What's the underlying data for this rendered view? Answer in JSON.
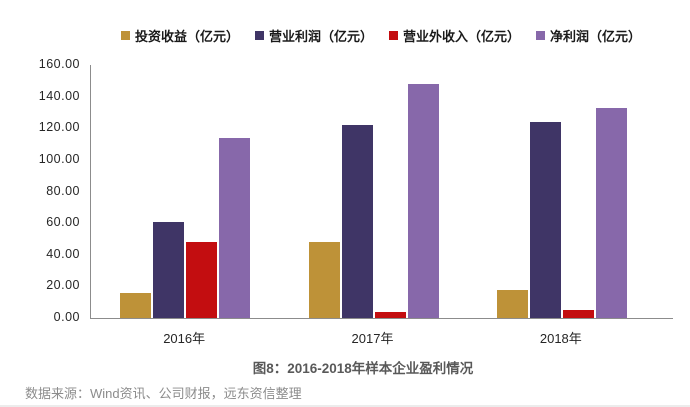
{
  "chart_data": {
    "type": "bar",
    "title": "图8：2016-2018年样本企业盈利情况",
    "categories": [
      "2016年",
      "2017年",
      "2018年"
    ],
    "series": [
      {
        "key": "investment-income",
        "name": "投资收益（亿元）",
        "color": "#BE9238",
        "values": [
          16,
          48,
          18
        ]
      },
      {
        "key": "operating-profit",
        "name": "营业利润（亿元）",
        "color": "#3F3566",
        "values": [
          61,
          122,
          124
        ]
      },
      {
        "key": "non-operating-income",
        "name": "营业外收入（亿元）",
        "color": "#C30D10",
        "values": [
          48,
          4,
          5
        ]
      },
      {
        "key": "net-profit",
        "name": "净利润（亿元）",
        "color": "#8768AA",
        "values": [
          114,
          148,
          133
        ]
      }
    ],
    "ylim": [
      0,
      160
    ],
    "ytick_step": 20,
    "ytick_labels": [
      "0.00",
      "20.00",
      "40.00",
      "60.00",
      "80.00",
      "100.00",
      "120.00",
      "140.00",
      "160.00"
    ],
    "grid": false,
    "legend_position": "top",
    "axis_color": "#8c8c8c"
  },
  "caption": "图8：2016-2018年样本企业盈利情况",
  "source_note": "数据来源：Wind资讯、公司财报，远东资信整理"
}
